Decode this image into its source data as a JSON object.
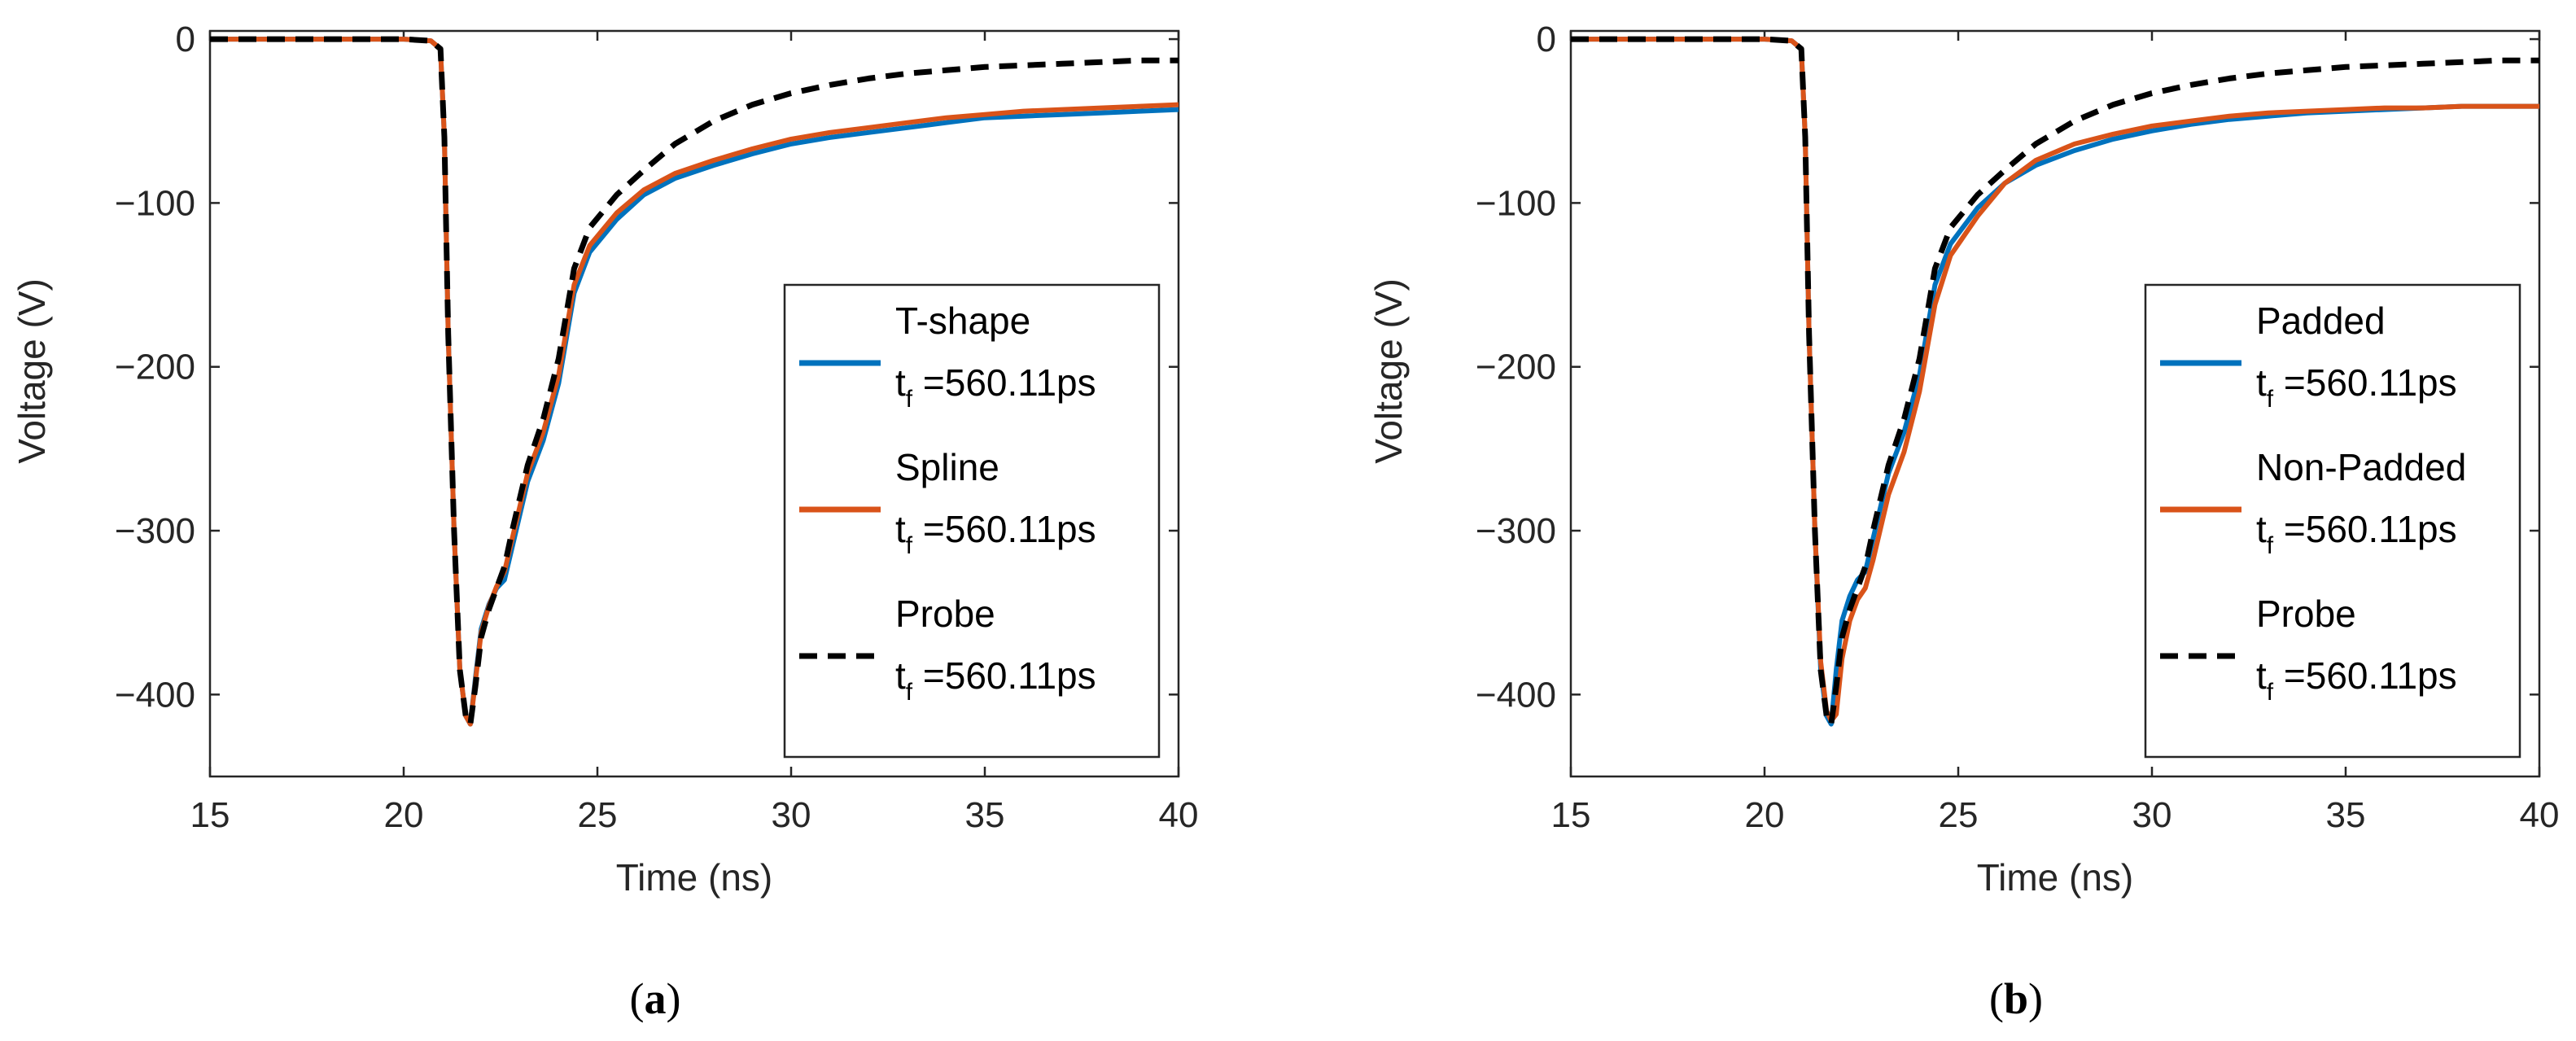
{
  "colors": {
    "blue": "#0072BD",
    "orange": "#D95319",
    "black": "#000000",
    "axis": "#262626"
  },
  "chart_data": [
    {
      "type": "line",
      "panel_label": "a",
      "xlabel": "Time (ns)",
      "ylabel": "Voltage (V)",
      "xlim": [
        15,
        40
      ],
      "ylim": [
        -450,
        5
      ],
      "xticks": [
        15,
        20,
        25,
        30,
        35,
        40
      ],
      "yticks": [
        0,
        -100,
        -200,
        -300,
        -400
      ],
      "ytick_labels": [
        "0",
        "−100",
        "−200",
        "−300",
        "−400"
      ],
      "legend_position": "bottom-right",
      "series": [
        {
          "name": "T-shape",
          "subtitle_main": "t",
          "subtitle_sub": "f",
          "subtitle_value": " =560.11ps",
          "color": "#0072BD",
          "dash": "solid",
          "x": [
            15,
            20,
            20.7,
            20.95,
            21.05,
            21.15,
            21.3,
            21.45,
            21.6,
            21.72,
            21.85,
            22.0,
            22.2,
            22.4,
            22.6,
            22.8,
            23.2,
            23.6,
            24.0,
            24.4,
            24.8,
            25.5,
            26.2,
            27.0,
            28.0,
            29.0,
            30.0,
            31.0,
            32.0,
            33.0,
            34.0,
            35.0,
            36.0,
            37.0,
            38.0,
            39.0,
            40.0
          ],
          "y": [
            0,
            0,
            -1,
            -6,
            -60,
            -180,
            -300,
            -385,
            -413,
            -418,
            -390,
            -360,
            -345,
            -335,
            -330,
            -310,
            -270,
            -245,
            -210,
            -155,
            -130,
            -110,
            -95,
            -85,
            -77,
            -70,
            -64,
            -60,
            -57,
            -54,
            -51,
            -48,
            -47,
            -46,
            -45,
            -44,
            -43
          ]
        },
        {
          "name": "Spline",
          "subtitle_main": "t",
          "subtitle_sub": "f",
          "subtitle_value": " =560.11ps",
          "color": "#D95319",
          "dash": "solid",
          "x": [
            15,
            20,
            20.7,
            20.95,
            21.05,
            21.15,
            21.3,
            21.45,
            21.6,
            21.72,
            21.85,
            22.0,
            22.2,
            22.4,
            22.6,
            22.8,
            23.2,
            23.6,
            24.0,
            24.4,
            24.8,
            25.5,
            26.2,
            27.0,
            28.0,
            29.0,
            30.0,
            31.0,
            32.0,
            33.0,
            34.0,
            35.0,
            36.0,
            37.0,
            38.0,
            39.0,
            40.0
          ],
          "y": [
            0,
            0,
            -1,
            -6,
            -60,
            -180,
            -300,
            -385,
            -413,
            -418,
            -392,
            -362,
            -346,
            -334,
            -325,
            -305,
            -265,
            -240,
            -205,
            -150,
            -126,
            -106,
            -92,
            -82,
            -74,
            -67,
            -61,
            -57,
            -54,
            -51,
            -48,
            -46,
            -44,
            -43,
            -42,
            -41,
            -40
          ]
        },
        {
          "name": "Probe",
          "subtitle_main": "t",
          "subtitle_sub": "f",
          "subtitle_value": " =560.11ps",
          "color": "#000000",
          "dash": "dashed",
          "x": [
            15,
            20,
            20.7,
            20.95,
            21.05,
            21.15,
            21.3,
            21.45,
            21.6,
            21.72,
            21.85,
            22.0,
            22.2,
            22.4,
            22.6,
            22.8,
            23.2,
            23.6,
            24.0,
            24.4,
            24.8,
            25.5,
            26.2,
            27.0,
            28.0,
            29.0,
            30.0,
            31.0,
            32.0,
            33.0,
            34.0,
            35.0,
            36.0,
            37.0,
            38.0,
            39.0,
            40.0
          ],
          "y": [
            0,
            0,
            -1,
            -6,
            -60,
            -180,
            -300,
            -385,
            -413,
            -418,
            -395,
            -365,
            -348,
            -335,
            -322,
            -300,
            -260,
            -232,
            -195,
            -140,
            -115,
            -95,
            -80,
            -64,
            -50,
            -40,
            -33,
            -28,
            -24,
            -21,
            -19,
            -17,
            -16,
            -15,
            -14,
            -13,
            -13
          ]
        }
      ]
    },
    {
      "type": "line",
      "panel_label": "b",
      "xlabel": "Time (ns)",
      "ylabel": "Voltage (V)",
      "xlim": [
        15,
        40
      ],
      "ylim": [
        -450,
        5
      ],
      "xticks": [
        15,
        20,
        25,
        30,
        35,
        40
      ],
      "yticks": [
        0,
        -100,
        -200,
        -300,
        -400
      ],
      "ytick_labels": [
        "0",
        "−100",
        "−200",
        "−300",
        "−400"
      ],
      "legend_position": "bottom-right",
      "series": [
        {
          "name": "Padded",
          "subtitle_main": "t",
          "subtitle_sub": "f",
          "subtitle_value": " =560.11ps",
          "color": "#0072BD",
          "dash": "solid",
          "x": [
            15,
            20,
            20.7,
            20.95,
            21.05,
            21.15,
            21.3,
            21.45,
            21.6,
            21.72,
            21.85,
            22.0,
            22.2,
            22.4,
            22.6,
            22.8,
            23.2,
            23.6,
            24.0,
            24.4,
            24.8,
            25.5,
            26.2,
            27.0,
            28.0,
            29.0,
            30.0,
            31.0,
            32.0,
            33.0,
            34.0,
            35.0,
            36.0,
            37.0,
            38.0,
            39.0,
            40.0
          ],
          "y": [
            0,
            0,
            -1,
            -6,
            -60,
            -180,
            -300,
            -385,
            -413,
            -418,
            -385,
            -355,
            -340,
            -330,
            -325,
            -305,
            -265,
            -240,
            -205,
            -150,
            -125,
            -103,
            -88,
            -77,
            -68,
            -61,
            -56,
            -52,
            -49,
            -47,
            -45,
            -44,
            -43,
            -42,
            -41,
            -41,
            -41
          ]
        },
        {
          "name": "Non-Padded",
          "subtitle_main": "t",
          "subtitle_sub": "f",
          "subtitle_value": " =560.11ps",
          "color": "#D95319",
          "dash": "solid",
          "x": [
            15,
            20,
            20.7,
            20.95,
            21.05,
            21.15,
            21.3,
            21.45,
            21.6,
            21.72,
            21.85,
            22.0,
            22.2,
            22.4,
            22.6,
            22.8,
            23.2,
            23.6,
            24.0,
            24.4,
            24.8,
            25.5,
            26.2,
            27.0,
            28.0,
            29.0,
            30.0,
            31.0,
            32.0,
            33.0,
            34.0,
            35.0,
            36.0,
            37.0,
            38.0,
            39.0,
            40.0
          ],
          "y": [
            0,
            0,
            -1,
            -6,
            -60,
            -180,
            -300,
            -380,
            -410,
            -416,
            -412,
            -378,
            -355,
            -342,
            -335,
            -318,
            -278,
            -252,
            -215,
            -162,
            -132,
            -108,
            -88,
            -74,
            -64,
            -58,
            -53,
            -50,
            -47,
            -45,
            -44,
            -43,
            -42,
            -42,
            -41,
            -41,
            -41
          ]
        },
        {
          "name": "Probe",
          "subtitle_main": "t",
          "subtitle_sub": "f",
          "subtitle_value": " =560.11ps",
          "color": "#000000",
          "dash": "dashed",
          "x": [
            15,
            20,
            20.7,
            20.95,
            21.05,
            21.15,
            21.3,
            21.45,
            21.6,
            21.72,
            21.85,
            22.0,
            22.2,
            22.4,
            22.6,
            22.8,
            23.2,
            23.6,
            24.0,
            24.4,
            24.8,
            25.5,
            26.2,
            27.0,
            28.0,
            29.0,
            30.0,
            31.0,
            32.0,
            33.0,
            34.0,
            35.0,
            36.0,
            37.0,
            38.0,
            39.0,
            40.0
          ],
          "y": [
            0,
            0,
            -1,
            -6,
            -60,
            -180,
            -300,
            -385,
            -413,
            -418,
            -395,
            -365,
            -348,
            -335,
            -322,
            -300,
            -260,
            -232,
            -195,
            -140,
            -115,
            -95,
            -80,
            -64,
            -50,
            -40,
            -33,
            -28,
            -24,
            -21,
            -19,
            -17,
            -16,
            -15,
            -14,
            -13,
            -13
          ]
        }
      ]
    }
  ]
}
